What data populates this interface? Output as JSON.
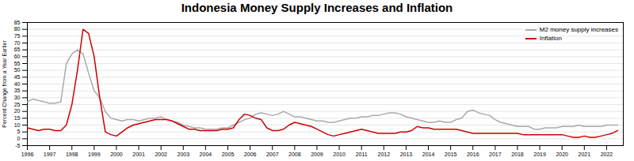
{
  "chart_data": {
    "type": "line",
    "title": "Indonesia Money Supply Increases and Inflation",
    "ylabel": "Percent Change from a Year Earlier",
    "x": [
      1996,
      1996.25,
      1996.5,
      1996.75,
      1997,
      1997.25,
      1997.5,
      1997.75,
      1998,
      1998.25,
      1998.5,
      1998.75,
      1999,
      1999.25,
      1999.5,
      1999.75,
      2000,
      2000.25,
      2000.5,
      2000.75,
      2001,
      2001.25,
      2001.5,
      2001.75,
      2002,
      2002.25,
      2002.5,
      2002.75,
      2003,
      2003.25,
      2003.5,
      2003.75,
      2004,
      2004.25,
      2004.5,
      2004.75,
      2005,
      2005.25,
      2005.5,
      2005.75,
      2006,
      2006.25,
      2006.5,
      2006.75,
      2007,
      2007.25,
      2007.5,
      2007.75,
      2008,
      2008.25,
      2008.5,
      2008.75,
      2009,
      2009.25,
      2009.5,
      2009.75,
      2010,
      2010.25,
      2010.5,
      2010.75,
      2011,
      2011.25,
      2011.5,
      2011.75,
      2012,
      2012.25,
      2012.5,
      2012.75,
      2013,
      2013.25,
      2013.5,
      2013.75,
      2014,
      2014.25,
      2014.5,
      2014.75,
      2015,
      2015.25,
      2015.5,
      2015.75,
      2016,
      2016.25,
      2016.5,
      2016.75,
      2017,
      2017.25,
      2017.5,
      2017.75,
      2018,
      2018.25,
      2018.5,
      2018.75,
      2019,
      2019.25,
      2019.5,
      2019.75,
      2020,
      2020.25,
      2020.5,
      2020.75,
      2021,
      2021.25,
      2021.5,
      2021.75,
      2022,
      2022.25,
      2022.5
    ],
    "series": [
      {
        "name": "M2 money supply increases",
        "color": "#aaaaaa",
        "values": [
          27,
          29,
          28,
          27,
          26,
          26,
          27,
          55,
          62,
          65,
          62,
          48,
          35,
          30,
          20,
          15,
          14,
          13,
          14,
          14,
          13,
          14,
          15,
          15,
          16,
          14,
          13,
          12,
          10,
          9,
          8,
          8,
          7,
          7,
          7,
          8,
          8,
          10,
          12,
          14,
          15,
          18,
          19,
          18,
          17,
          18,
          20,
          18,
          16,
          16,
          15,
          14,
          13,
          13,
          12,
          12,
          13,
          14,
          15,
          15,
          16,
          16,
          17,
          17,
          18,
          19,
          19,
          18,
          16,
          15,
          14,
          13,
          12,
          12,
          13,
          12,
          12,
          14,
          15,
          20,
          21,
          19,
          18,
          17,
          14,
          12,
          11,
          10,
          9,
          9,
          9,
          7,
          7,
          8,
          8,
          8,
          9,
          9,
          9,
          10,
          9,
          9,
          9,
          9,
          10,
          10,
          10
        ]
      },
      {
        "name": "Inflation",
        "color": "#cc0000",
        "values": [
          8,
          7,
          6,
          7,
          7,
          6,
          6,
          10,
          25,
          50,
          80,
          77,
          60,
          30,
          5,
          3,
          2,
          5,
          8,
          10,
          11,
          12,
          13,
          14,
          14,
          14,
          13,
          11,
          9,
          7,
          7,
          6,
          6,
          6,
          6,
          7,
          7,
          8,
          14,
          18,
          17,
          15,
          14,
          8,
          6,
          6,
          7,
          10,
          12,
          11,
          10,
          9,
          7,
          5,
          3,
          2,
          3,
          4,
          5,
          6,
          7,
          6,
          5,
          4,
          4,
          4,
          4,
          5,
          5,
          6,
          9,
          8,
          8,
          7,
          7,
          7,
          7,
          7,
          6,
          5,
          4,
          4,
          4,
          4,
          4,
          4,
          4,
          4,
          4,
          3,
          3,
          3,
          3,
          3,
          3,
          3,
          3,
          2,
          1,
          1,
          2,
          1,
          1,
          2,
          3,
          4,
          6
        ]
      }
    ],
    "xlim": [
      1996,
      2022.75
    ],
    "xticks": [
      1996,
      1997,
      1998,
      1999,
      2000,
      2001,
      2002,
      2003,
      2004,
      2005,
      2006,
      2007,
      2008,
      2009,
      2010,
      2011,
      2012,
      2013,
      2014,
      2015,
      2016,
      2017,
      2018,
      2019,
      2020,
      2021,
      2022
    ],
    "ylim": [
      -5,
      85
    ],
    "yticks": [
      -5,
      0,
      5,
      10,
      15,
      20,
      25,
      30,
      35,
      40,
      45,
      50,
      55,
      60,
      65,
      70,
      75,
      80,
      85
    ],
    "grid": true,
    "legend": "upper right"
  }
}
